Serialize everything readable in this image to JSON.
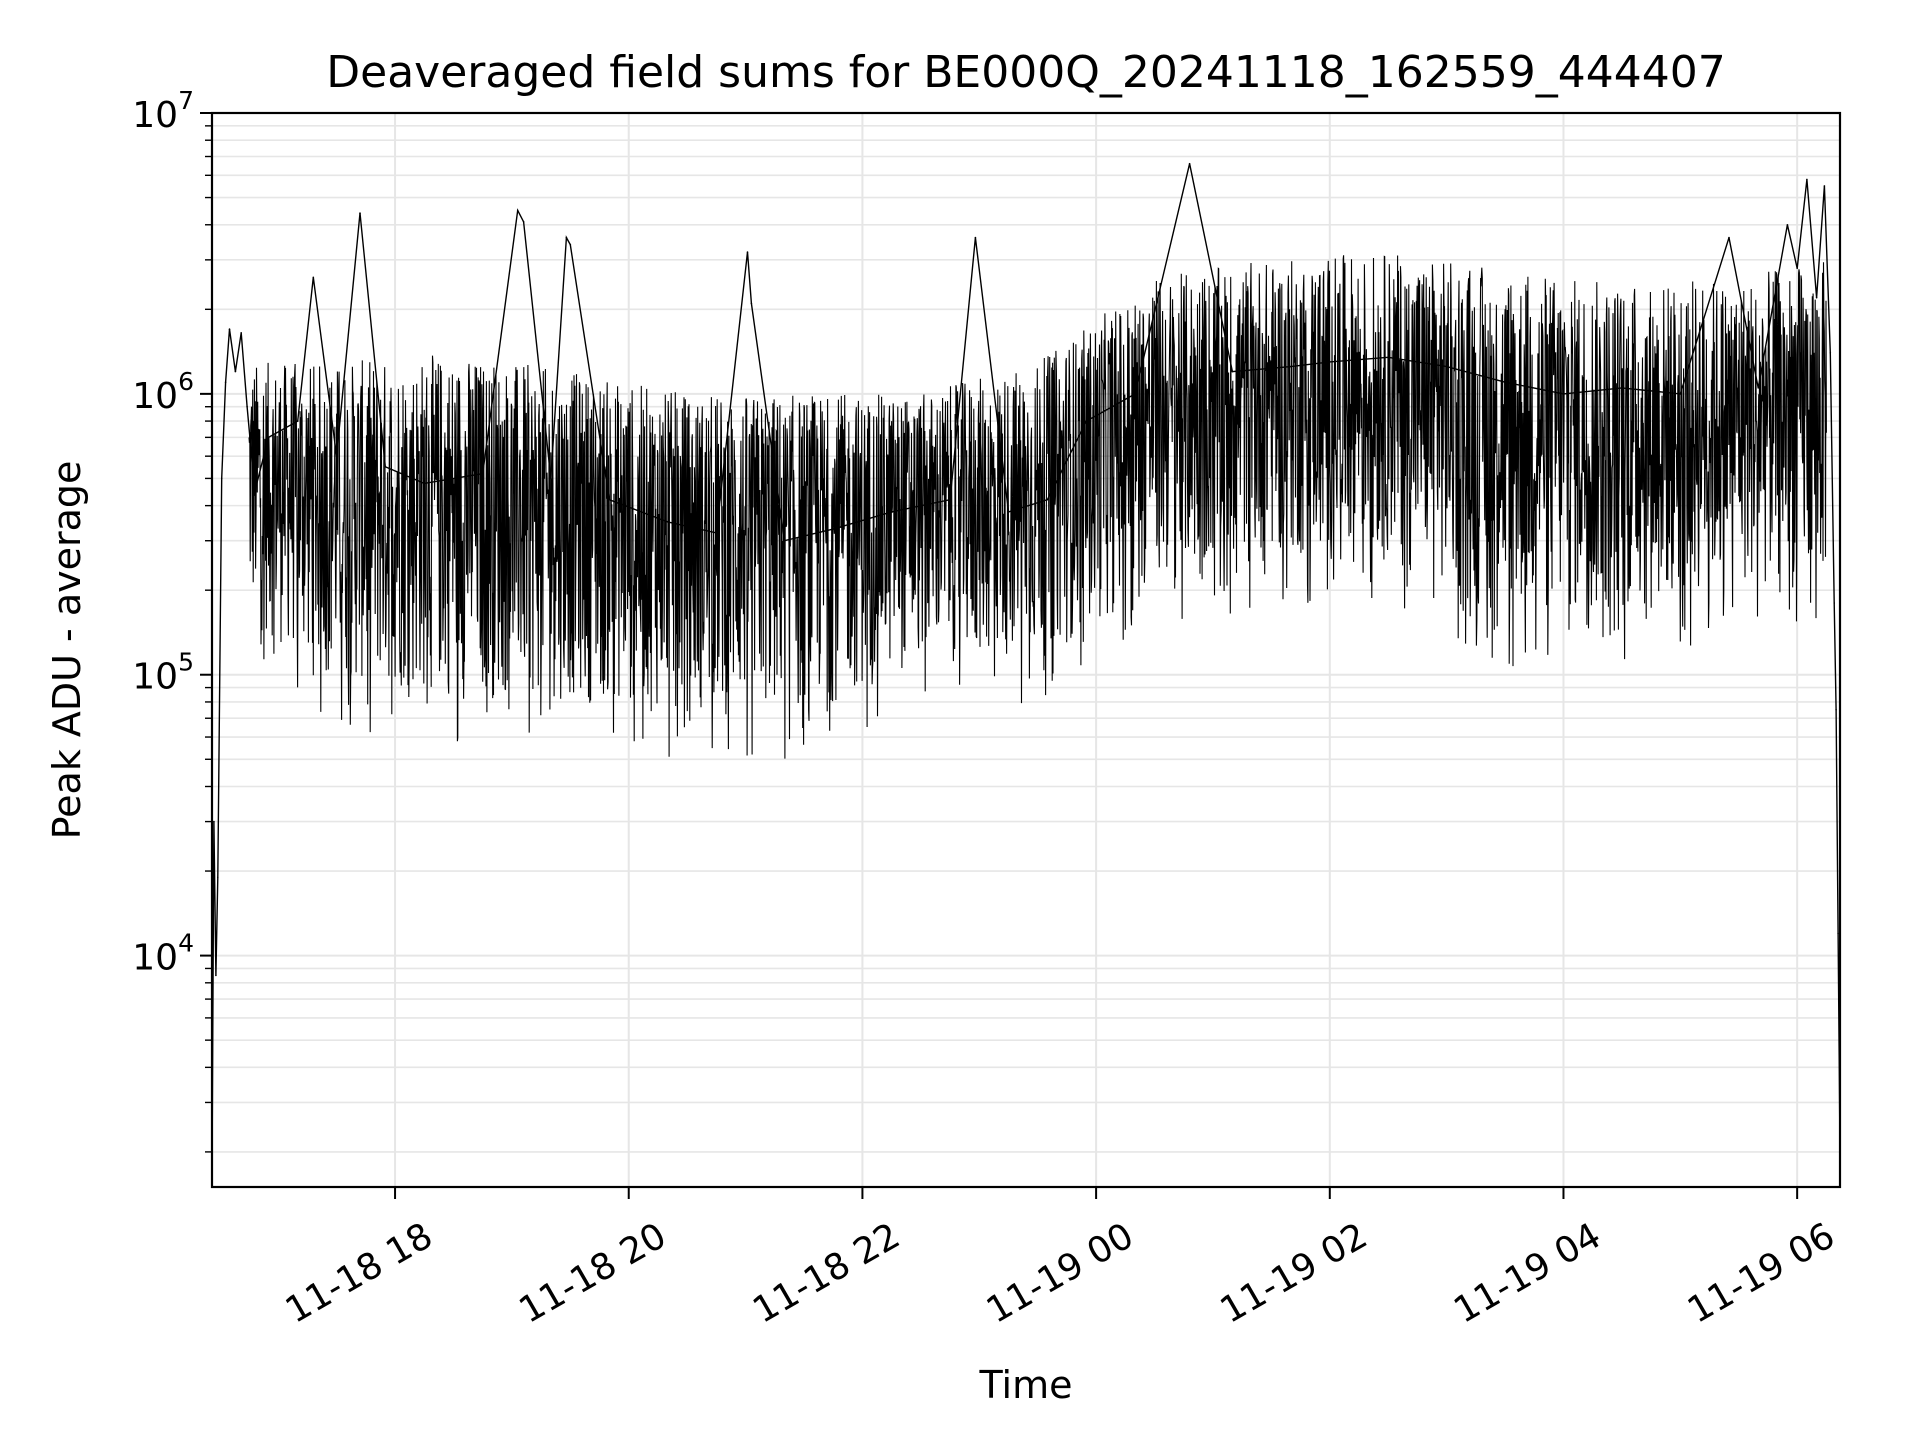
{
  "chart_data": {
    "type": "line",
    "title": "Deaveraged field sums for BE000Q_20241118_162559_444407",
    "xlabel": "Time",
    "ylabel": "Peak ADU - average",
    "x_range": [
      "2024-11-18 16:26",
      "2024-11-19 06:22"
    ],
    "ylim": [
      1500,
      10000000
    ],
    "y_scale": "log",
    "grid": true,
    "line_color": "#000000",
    "grid_color": "#e6e6e6",
    "x_ticks": [
      {
        "time": "2024-11-18 18:00",
        "label": "11-18 18"
      },
      {
        "time": "2024-11-18 20:00",
        "label": "11-18 20"
      },
      {
        "time": "2024-11-18 22:00",
        "label": "11-18 22"
      },
      {
        "time": "2024-11-19 00:00",
        "label": "11-19 00"
      },
      {
        "time": "2024-11-19 02:00",
        "label": "11-19 02"
      },
      {
        "time": "2024-11-19 04:00",
        "label": "11-19 04"
      },
      {
        "time": "2024-11-19 06:00",
        "label": "11-19 06"
      }
    ],
    "y_ticks": [
      {
        "value": 10000,
        "base": "10",
        "exp": "4"
      },
      {
        "value": 100000,
        "base": "10",
        "exp": "5"
      },
      {
        "value": 1000000,
        "base": "10",
        "exp": "6"
      },
      {
        "value": 10000000,
        "base": "10",
        "exp": "7"
      }
    ],
    "series": [
      {
        "points": [
          [
            "2024-11-18 16:26",
            1600
          ],
          [
            "2024-11-18 16:27",
            30000
          ],
          [
            "2024-11-18 16:28",
            8500
          ],
          [
            "2024-11-18 16:29",
            19000
          ],
          [
            "2024-11-18 16:31",
            500000
          ],
          [
            "2024-11-18 16:33",
            1100000
          ],
          [
            "2024-11-18 16:35",
            1700000
          ],
          [
            "2024-11-18 16:38",
            1200000
          ],
          [
            "2024-11-18 16:41",
            1650000
          ],
          [
            "2024-11-18 16:44",
            900000
          ],
          [
            "2024-11-18 16:48",
            450000
          ],
          [
            "2024-11-18 16:55",
            700000
          ],
          [
            "2024-11-18 17:10",
            800000
          ],
          [
            "2024-11-18 17:18",
            2600000
          ],
          [
            "2024-11-18 17:30",
            600000
          ],
          [
            "2024-11-18 17:42",
            4400000
          ],
          [
            "2024-11-18 17:55",
            550000
          ],
          [
            "2024-11-18 18:15",
            480000
          ],
          [
            "2024-11-18 18:45",
            520000
          ],
          [
            "2024-11-18 19:03",
            4500000
          ],
          [
            "2024-11-18 19:06",
            4100000
          ],
          [
            "2024-11-18 19:20",
            500000
          ],
          [
            "2024-11-18 19:28",
            3600000
          ],
          [
            "2024-11-18 19:30",
            3400000
          ],
          [
            "2024-11-18 19:50",
            420000
          ],
          [
            "2024-11-18 20:20",
            350000
          ],
          [
            "2024-11-18 20:45",
            320000
          ],
          [
            "2024-11-18 21:01",
            3200000
          ],
          [
            "2024-11-18 21:03",
            2100000
          ],
          [
            "2024-11-18 21:20",
            300000
          ],
          [
            "2024-11-18 21:45",
            330000
          ],
          [
            "2024-11-18 22:15",
            380000
          ],
          [
            "2024-11-18 22:45",
            420000
          ],
          [
            "2024-11-18 22:58",
            3600000
          ],
          [
            "2024-11-18 23:15",
            380000
          ],
          [
            "2024-11-18 23:35",
            420000
          ],
          [
            "2024-11-18 23:55",
            800000
          ],
          [
            "2024-11-19 00:20",
            1000000
          ],
          [
            "2024-11-19 00:48",
            6600000
          ],
          [
            "2024-11-19 01:10",
            1200000
          ],
          [
            "2024-11-19 01:40",
            1250000
          ],
          [
            "2024-11-19 02:00",
            1300000
          ],
          [
            "2024-11-19 02:30",
            1350000
          ],
          [
            "2024-11-19 03:00",
            1250000
          ],
          [
            "2024-11-19 03:30",
            1100000
          ],
          [
            "2024-11-19 04:00",
            1000000
          ],
          [
            "2024-11-19 04:30",
            1050000
          ],
          [
            "2024-11-19 05:00",
            1000000
          ],
          [
            "2024-11-19 05:25",
            3600000
          ],
          [
            "2024-11-19 05:40",
            1050000
          ],
          [
            "2024-11-19 05:55",
            4000000
          ],
          [
            "2024-11-19 06:00",
            2800000
          ],
          [
            "2024-11-19 06:05",
            5800000
          ],
          [
            "2024-11-19 06:10",
            2200000
          ],
          [
            "2024-11-19 06:14",
            5500000
          ],
          [
            "2024-11-19 06:17",
            1400000
          ],
          [
            "2024-11-19 06:19",
            180000
          ],
          [
            "2024-11-19 06:20",
            75000
          ],
          [
            "2024-11-19 06:21",
            12000
          ],
          [
            "2024-11-19 06:22",
            2000
          ]
        ],
        "dense_band": [
          [
            "2024-11-18 16:45",
            150000,
            1300000
          ],
          [
            "2024-11-18 17:30",
            90000,
            1300000
          ],
          [
            "2024-11-18 18:30",
            80000,
            1400000
          ],
          [
            "2024-11-18 19:30",
            80000,
            1200000
          ],
          [
            "2024-11-18 20:30",
            70000,
            1000000
          ],
          [
            "2024-11-18 21:30",
            70000,
            1000000
          ],
          [
            "2024-11-18 22:30",
            110000,
            1000000
          ],
          [
            "2024-11-18 23:30",
            110000,
            1300000
          ],
          [
            "2024-11-19 00:30",
            200000,
            2600000
          ],
          [
            "2024-11-19 01:30",
            250000,
            3000000
          ],
          [
            "2024-11-19 02:30",
            250000,
            3200000
          ],
          [
            "2024-11-19 03:30",
            150000,
            2800000
          ],
          [
            "2024-11-19 04:30",
            150000,
            2500000
          ],
          [
            "2024-11-19 05:30",
            200000,
            2600000
          ],
          [
            "2024-11-19 06:15",
            200000,
            3000000
          ]
        ]
      }
    ]
  }
}
